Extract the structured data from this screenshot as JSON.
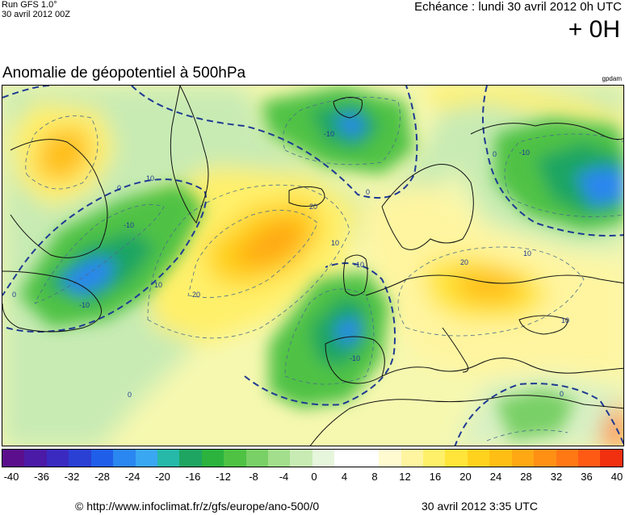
{
  "header": {
    "run_label": "Run GFS 1.0°",
    "run_date": "30 avril 2012 00Z",
    "forecast_label": "Echéance : lundi 30 avril 2012 0h UTC",
    "lead_time": "+ 0H"
  },
  "map": {
    "title": "Anomalie de géopotentiel à 500hPa",
    "credit": "gpdam",
    "contour_labels": [
      {
        "text": "0",
        "pos": "lower-left"
      },
      {
        "text": "-10",
        "pos": "low-centre-left"
      },
      {
        "text": "-10",
        "pos": "upper-centre"
      },
      {
        "text": "10",
        "pos": "upper-left"
      },
      {
        "text": "20",
        "pos": "upper-centre"
      },
      {
        "text": "10",
        "pos": "centre"
      },
      {
        "text": "20",
        "pos": "centre"
      },
      {
        "text": "10",
        "pos": "upper-centre"
      },
      {
        "text": "0",
        "pos": "lower-centre"
      },
      {
        "text": "-10",
        "pos": "upper-left"
      },
      {
        "text": "0",
        "pos": "upper-right"
      },
      {
        "text": "-10",
        "pos": "upper-right"
      },
      {
        "text": "10",
        "pos": "right"
      },
      {
        "text": "20",
        "pos": "right"
      },
      {
        "text": "10",
        "pos": "lower-right"
      },
      {
        "text": "0",
        "pos": "lower-right"
      },
      {
        "text": "-10",
        "pos": "lower-centre"
      },
      {
        "text": "-10",
        "pos": "upper-centre"
      },
      {
        "text": "0",
        "pos": "upper-left"
      },
      {
        "text": "0",
        "pos": "centre"
      }
    ]
  },
  "colorbar": {
    "colors": [
      "#5b0f8c",
      "#4b1aa6",
      "#3a2ac0",
      "#2a40d4",
      "#1f5ee8",
      "#2a86f0",
      "#3aa7f2",
      "#26b8a8",
      "#1ea562",
      "#2bb33e",
      "#4fc244",
      "#79d066",
      "#a3de8c",
      "#c8ebb4",
      "#e6f6dc",
      "#ffffff",
      "#ffffff",
      "#fffad0",
      "#fff5a0",
      "#fff06a",
      "#ffe43a",
      "#ffd21e",
      "#ffbe14",
      "#ffa814",
      "#ff9014",
      "#ff7814",
      "#ff5a14",
      "#f0300e"
    ],
    "labels": [
      "-40",
      "-36",
      "-32",
      "-28",
      "-24",
      "-20",
      "-16",
      "-12",
      "-8",
      "-4",
      "0",
      "4",
      "8",
      "12",
      "16",
      "20",
      "24",
      "28",
      "32",
      "36",
      "40"
    ]
  },
  "footer": {
    "source_url": "© http://www.infoclimat.fr/z/gfs/europe/ano-500/0",
    "generated_time": "30 avril 2012  3:35 UTC"
  }
}
